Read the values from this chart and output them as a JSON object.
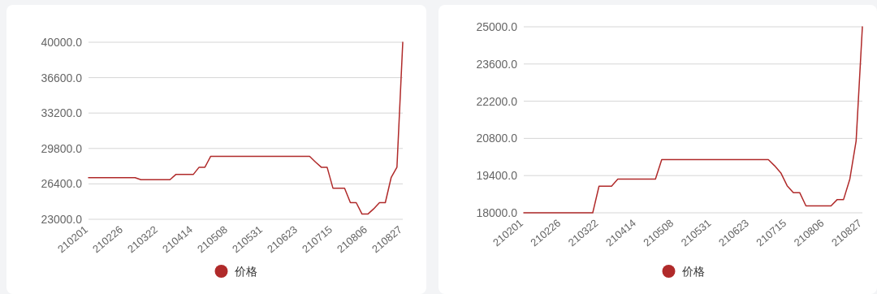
{
  "chart_data": [
    {
      "type": "line",
      "categories": [
        "210201",
        null,
        null,
        null,
        null,
        null,
        "210226",
        null,
        null,
        null,
        null,
        null,
        "210322",
        null,
        null,
        null,
        null,
        null,
        "210414",
        null,
        null,
        null,
        null,
        null,
        "210508",
        null,
        null,
        null,
        null,
        null,
        "210531",
        null,
        null,
        null,
        null,
        null,
        "210623",
        null,
        null,
        null,
        null,
        null,
        "210715",
        null,
        null,
        null,
        null,
        null,
        "210806",
        null,
        null,
        null,
        null,
        null,
        "210827"
      ],
      "series": [
        {
          "name": "价格",
          "color": "#b02a2a",
          "values": [
            27000,
            27000,
            27000,
            27000,
            27000,
            27000,
            27000,
            27000,
            27000,
            26800,
            26800,
            26800,
            26800,
            26800,
            26800,
            27300,
            27300,
            27300,
            27300,
            28000,
            28000,
            29050,
            29050,
            29050,
            29050,
            29050,
            29050,
            29050,
            29050,
            29050,
            29050,
            29050,
            29050,
            29050,
            29050,
            29050,
            29050,
            29050,
            29050,
            28500,
            28000,
            28000,
            25990,
            25990,
            25990,
            24600,
            24600,
            23500,
            23500,
            24000,
            24600,
            24600,
            27000,
            28000,
            40000
          ]
        }
      ],
      "ylim": [
        23000,
        40000
      ],
      "yticks": [
        {
          "value": 23000,
          "label": "23000.0"
        },
        {
          "value": 26400,
          "label": "26400.0"
        },
        {
          "value": 29800,
          "label": "29800.0"
        },
        {
          "value": 33200,
          "label": "33200.0"
        },
        {
          "value": 36600,
          "label": "36600.0"
        },
        {
          "value": 40000,
          "label": "40000.0"
        }
      ],
      "grid": "y",
      "legend": "bottom",
      "marker": "none",
      "line_style": "solid"
    },
    {
      "type": "line",
      "categories": [
        "210201",
        null,
        null,
        null,
        null,
        null,
        "210226",
        null,
        null,
        null,
        null,
        null,
        "210322",
        null,
        null,
        null,
        null,
        null,
        "210414",
        null,
        null,
        null,
        null,
        null,
        "210508",
        null,
        null,
        null,
        null,
        null,
        "210531",
        null,
        null,
        null,
        null,
        null,
        "210623",
        null,
        null,
        null,
        null,
        null,
        "210715",
        null,
        null,
        null,
        null,
        null,
        "210806",
        null,
        null,
        null,
        null,
        null,
        "210827"
      ],
      "series": [
        {
          "name": "价格",
          "color": "#b02a2a",
          "values": [
            18000,
            18000,
            18000,
            18000,
            18000,
            18000,
            18000,
            18000,
            18000,
            18000,
            18000,
            18000,
            19000,
            19000,
            19000,
            19270,
            19270,
            19270,
            19270,
            19270,
            19270,
            19270,
            20000,
            20000,
            20000,
            20000,
            20000,
            20000,
            20000,
            20000,
            20000,
            20000,
            20000,
            20000,
            20000,
            20000,
            20000,
            20000,
            20000,
            20000,
            19770,
            19500,
            19020,
            18760,
            18760,
            18260,
            18260,
            18260,
            18260,
            18260,
            18500,
            18500,
            19270,
            20700,
            25000
          ]
        }
      ],
      "ylim": [
        18000,
        25000
      ],
      "yticks": [
        {
          "value": 18000,
          "label": "18000.0"
        },
        {
          "value": 19400,
          "label": "19400.0"
        },
        {
          "value": 20800,
          "label": "20800.0"
        },
        {
          "value": 22200,
          "label": "22200.0"
        },
        {
          "value": 23600,
          "label": "23600.0"
        },
        {
          "value": 25000,
          "label": "25000.0"
        }
      ],
      "grid": "y",
      "legend": "bottom",
      "marker": "none",
      "line_style": "solid"
    }
  ]
}
